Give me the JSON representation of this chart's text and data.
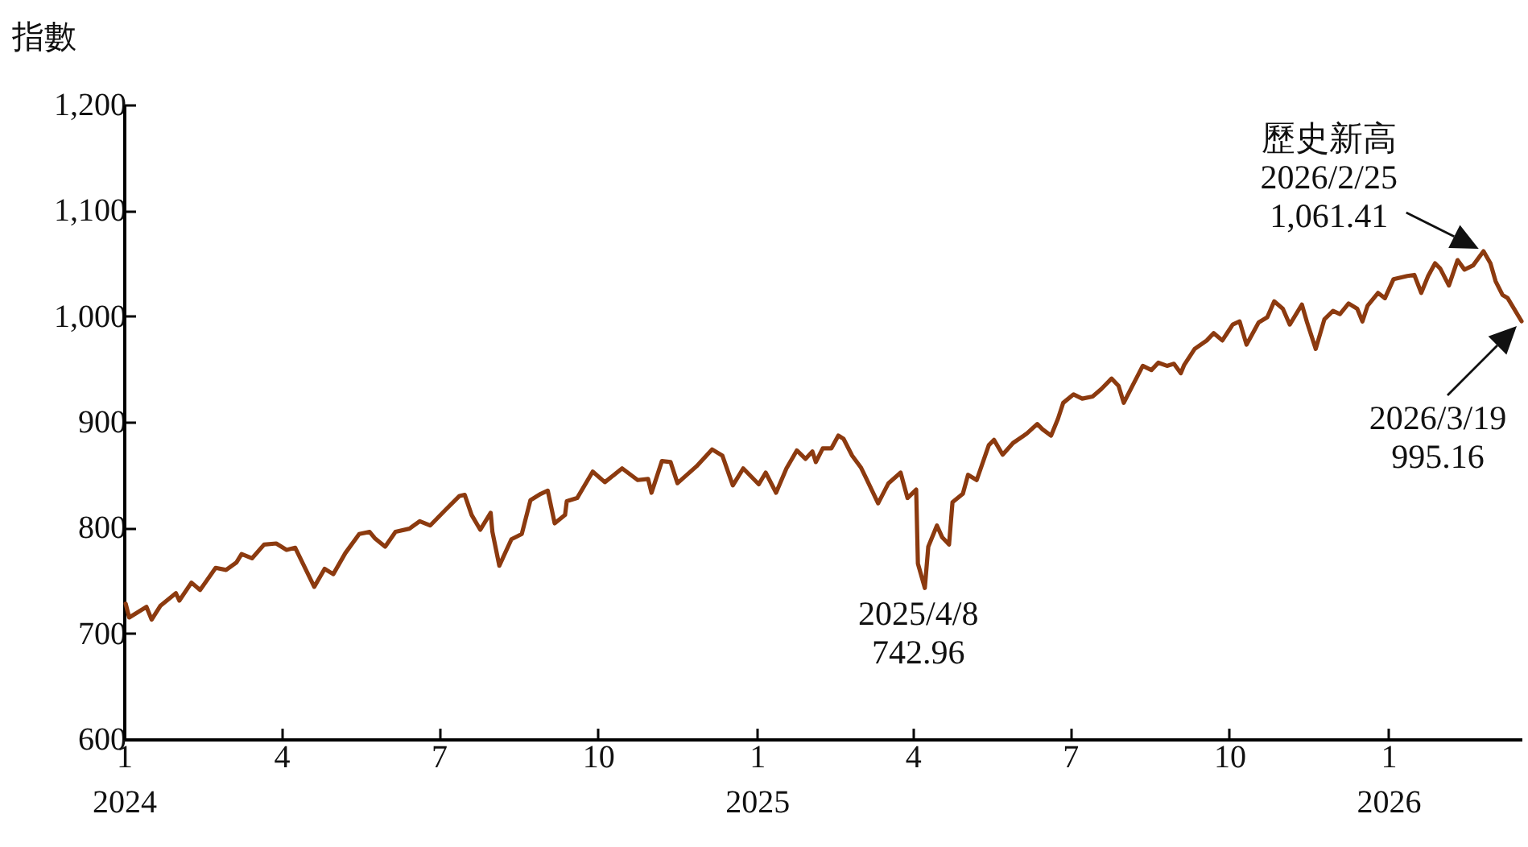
{
  "chart_data": {
    "type": "line",
    "ylabel": "指數",
    "xlim": [
      "2024-01-01",
      "2026-03-19"
    ],
    "ylim": [
      600,
      1200
    ],
    "yticks": [
      {
        "value": 600,
        "label": "600"
      },
      {
        "value": 700,
        "label": "700"
      },
      {
        "value": 800,
        "label": "800"
      },
      {
        "value": 900,
        "label": "900"
      },
      {
        "value": 1000,
        "label": "1,000"
      },
      {
        "value": 1100,
        "label": "1,100"
      },
      {
        "value": 1200,
        "label": "1,200"
      }
    ],
    "xticks": [
      {
        "value": "2024-01-01",
        "label": "1\n2024"
      },
      {
        "value": "2024-04-01",
        "label": "4"
      },
      {
        "value": "2024-07-01",
        "label": "7"
      },
      {
        "value": "2024-10-01",
        "label": "10"
      },
      {
        "value": "2025-01-01",
        "label": "1\n2025"
      },
      {
        "value": "2025-04-01",
        "label": "4"
      },
      {
        "value": "2025-07-01",
        "label": "7"
      },
      {
        "value": "2025-10-01",
        "label": "10"
      },
      {
        "value": "2026-01-01",
        "label": "1\n2026"
      }
    ],
    "grid": false,
    "marker": "none",
    "line_style": "solid",
    "x": [
      "2024-01-02",
      "2024-01-04",
      "2024-01-14",
      "2024-01-17",
      "2024-01-22",
      "2024-01-31",
      "2024-02-02",
      "2024-02-09",
      "2024-02-14",
      "2024-02-23",
      "2024-02-29",
      "2024-03-06",
      "2024-03-09",
      "2024-03-15",
      "2024-03-22",
      "2024-03-29",
      "2024-04-04",
      "2024-04-09",
      "2024-04-20",
      "2024-04-26",
      "2024-05-01",
      "2024-05-08",
      "2024-05-16",
      "2024-05-22",
      "2024-05-25",
      "2024-05-31",
      "2024-06-06",
      "2024-06-14",
      "2024-06-20",
      "2024-06-26",
      "2024-07-05",
      "2024-07-13",
      "2024-07-16",
      "2024-07-20",
      "2024-07-25",
      "2024-07-28",
      "2024-07-31",
      "2024-08-01",
      "2024-08-05",
      "2024-08-12",
      "2024-08-18",
      "2024-08-23",
      "2024-08-29",
      "2024-09-02",
      "2024-09-06",
      "2024-09-12",
      "2024-09-13",
      "2024-09-19",
      "2024-09-28",
      "2024-10-05",
      "2024-10-15",
      "2024-10-24",
      "2024-10-30",
      "2024-11-01",
      "2024-11-07",
      "2024-11-12",
      "2024-11-16",
      "2024-11-27",
      "2024-12-06",
      "2024-12-12",
      "2024-12-18",
      "2024-12-24",
      "2025-01-02",
      "2025-01-06",
      "2025-01-12",
      "2025-01-18",
      "2025-01-24",
      "2025-01-29",
      "2025-02-02",
      "2025-02-04",
      "2025-02-08",
      "2025-02-13",
      "2025-02-17",
      "2025-02-20",
      "2025-02-25",
      "2025-03-02",
      "2025-03-05",
      "2025-03-12",
      "2025-03-18",
      "2025-03-25",
      "2025-03-29",
      "2025-04-03",
      "2025-04-04",
      "2025-04-08",
      "2025-04-10",
      "2025-04-15",
      "2025-04-18",
      "2025-04-22",
      "2025-04-24",
      "2025-04-30",
      "2025-05-03",
      "2025-05-08",
      "2025-05-15",
      "2025-05-18",
      "2025-05-23",
      "2025-05-29",
      "2025-06-06",
      "2025-06-12",
      "2025-06-15",
      "2025-06-20",
      "2025-06-24",
      "2025-06-27",
      "2025-07-03",
      "2025-07-08",
      "2025-07-14",
      "2025-07-19",
      "2025-07-25",
      "2025-07-29",
      "2025-08-01",
      "2025-08-06",
      "2025-08-12",
      "2025-08-17",
      "2025-08-21",
      "2025-08-26",
      "2025-08-30",
      "2025-09-03",
      "2025-09-05",
      "2025-09-11",
      "2025-09-18",
      "2025-09-22",
      "2025-09-27",
      "2025-10-03",
      "2025-10-07",
      "2025-10-11",
      "2025-10-14",
      "2025-10-18",
      "2025-10-23",
      "2025-10-27",
      "2025-11-01",
      "2025-11-05",
      "2025-11-12",
      "2025-11-15",
      "2025-11-20",
      "2025-11-25",
      "2025-11-30",
      "2025-12-04",
      "2025-12-09",
      "2025-12-14",
      "2025-12-17",
      "2025-12-20",
      "2025-12-26",
      "2025-12-30",
      "2026-01-04",
      "2026-01-12",
      "2026-01-16",
      "2026-01-20",
      "2026-01-24",
      "2026-01-28",
      "2026-01-31",
      "2026-02-05",
      "2026-02-10",
      "2026-02-14",
      "2026-02-19",
      "2026-02-25",
      "2026-03-01",
      "2026-03-04",
      "2026-03-08",
      "2026-03-11",
      "2026-03-19"
    ],
    "series": [
      {
        "color": "#8c3a0f",
        "values": [
          728,
          715,
          725,
          713,
          726,
          738,
          731,
          748,
          741,
          762,
          760,
          767,
          775,
          771,
          784,
          785,
          779,
          781,
          744,
          761,
          756,
          776,
          794,
          796,
          790,
          782,
          796,
          799,
          806,
          802,
          817,
          830,
          831,
          812,
          798,
          806,
          814,
          796,
          764,
          789,
          794,
          826,
          832,
          835,
          804,
          812,
          825,
          828,
          853,
          843,
          856,
          845,
          846,
          833,
          863,
          862,
          842,
          858,
          874,
          868,
          840,
          856,
          841,
          852,
          833,
          856,
          873,
          865,
          872,
          862,
          875,
          875,
          887,
          884,
          868,
          857,
          847,
          823,
          842,
          852,
          828,
          836,
          766,
          742.96,
          782,
          802,
          791,
          784,
          824,
          832,
          850,
          845,
          878,
          883,
          869,
          880,
          889,
          898,
          893,
          887,
          903,
          918,
          926,
          922,
          924,
          931,
          941,
          934,
          918,
          934,
          953,
          949,
          956,
          953,
          955,
          946,
          954,
          969,
          977,
          984,
          977,
          992,
          995,
          973,
          982,
          994,
          999,
          1014,
          1007,
          992,
          1011,
          994,
          969,
          997,
          1005,
          1002,
          1012,
          1007,
          995,
          1010,
          1022,
          1017,
          1035,
          1038,
          1039,
          1022,
          1038,
          1050,
          1045,
          1029,
          1053,
          1044,
          1048,
          1061.41,
          1050,
          1033,
          1020,
          1017,
          995.16
        ]
      }
    ],
    "annotations": [
      {
        "text": "歷史新高\n2026/2/25\n1,061.41",
        "x": "2026-02-25",
        "y": 1061.41
      },
      {
        "text": "2025/4/8\n742.96",
        "x": "2025-04-08",
        "y": 742.96
      },
      {
        "text": "2026/3/19\n995.16",
        "x": "2026-03-19",
        "y": 995.16
      }
    ]
  }
}
